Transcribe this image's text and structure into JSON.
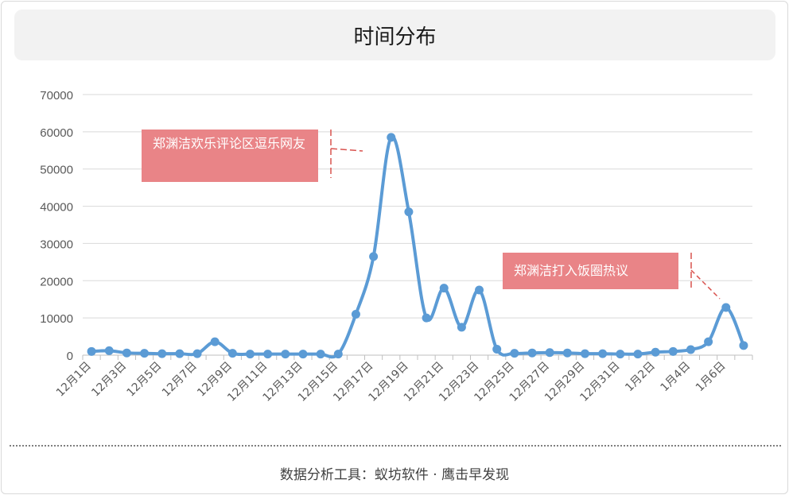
{
  "title": "时间分布",
  "footer": "数据分析工具：蚁坊软件 · 鹰击早发现",
  "chart_data": {
    "type": "line",
    "title": "时间分布",
    "categories": [
      "12月1日",
      "12月2日",
      "12月3日",
      "12月4日",
      "12月5日",
      "12月6日",
      "12月7日",
      "12月8日",
      "12月9日",
      "12月10日",
      "12月11日",
      "12月12日",
      "12月13日",
      "12月14日",
      "12月15日",
      "12月16日",
      "12月17日",
      "12月18日",
      "12月19日",
      "12月20日",
      "12月21日",
      "12月22日",
      "12月23日",
      "12月24日",
      "12月25日",
      "12月26日",
      "12月27日",
      "12月28日",
      "12月29日",
      "12月30日",
      "12月31日",
      "1月1日",
      "1月2日",
      "1月3日",
      "1月4日",
      "1月5日",
      "1月6日",
      "1月7日"
    ],
    "tick_labels": [
      "12月1日",
      "12月3日",
      "12月5日",
      "12月7日",
      "12月9日",
      "12月11日",
      "12月13日",
      "12月15日",
      "12月17日",
      "12月19日",
      "12月21日",
      "12月23日",
      "12月25日",
      "12月27日",
      "12月29日",
      "12月31日",
      "1月2日",
      "1月4日",
      "1月6日"
    ],
    "series": [
      {
        "values": [
          1000,
          1200,
          600,
          500,
          400,
          400,
          400,
          3600,
          500,
          300,
          300,
          300,
          300,
          300,
          300,
          11000,
          26500,
          58500,
          38500,
          10000,
          18000,
          7500,
          17500,
          1600,
          500,
          600,
          700,
          600,
          400,
          400,
          300,
          300,
          800,
          1000,
          1500,
          3600,
          12800,
          2600
        ]
      }
    ],
    "ylim": [
      0,
      70000
    ],
    "yticks": [
      0,
      10000,
      20000,
      30000,
      40000,
      50000,
      60000,
      70000
    ],
    "grid": true,
    "colors": {
      "line": "#5b9bd5",
      "annotation_bg": "#e98487",
      "annotation_line": "#d9534f"
    },
    "annotations": [
      {
        "text": "郑渊洁欢乐评论区逗乐网友",
        "target_category": "12月18日"
      },
      {
        "text": "郑渊洁打入饭圈热议",
        "target_category": "1月6日"
      }
    ]
  }
}
